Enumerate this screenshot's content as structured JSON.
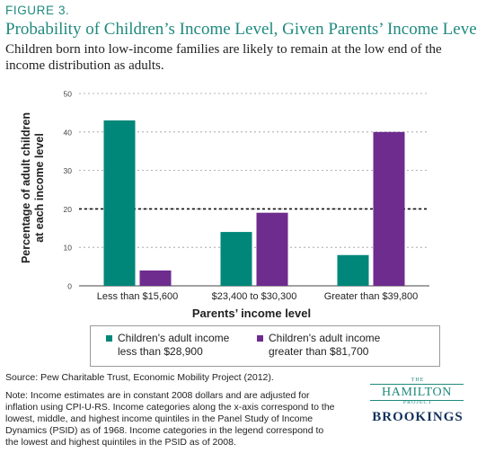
{
  "figure_label": "FIGURE 3.",
  "chart_data": {
    "type": "bar",
    "title": "Probability of Children’s Income Level, Given Parents’ Income Level",
    "subtitle": "Children born into low-income families are likely to remain at the low end of the income distribution as adults.",
    "xlabel": "Parents’ income level",
    "ylabel_lines": [
      "Percentage of adult children",
      "at each income level"
    ],
    "categories": [
      "Less than $15,600",
      "$23,400 to $30,300",
      "Greater than $39,800"
    ],
    "series": [
      {
        "name": "Children's adult income less than $28,900",
        "legend_lines": [
          "Children's adult income",
          "less than $28,900"
        ],
        "color": "#00877a",
        "values": [
          43,
          14,
          8
        ]
      },
      {
        "name": "Children's adult income greater than $81,700",
        "legend_lines": [
          "Children's adult income",
          "greater than $81,700"
        ],
        "color": "#6e2c8e",
        "values": [
          4,
          19,
          40
        ]
      }
    ],
    "ylim": [
      0,
      50
    ],
    "yticks": [
      0,
      10,
      20,
      30,
      40,
      50
    ],
    "grid": true,
    "reference_line": 20,
    "legend_position": "bottom"
  },
  "source": "Source: Pew Charitable Trust, Economic Mobility Project (2012).",
  "note": "Note: Income estimates are in constant 2008 dollars and are adjusted for inflation using CPI-U-RS. Income categories along the x-axis correspond to the lowest, middle, and highest income quintiles in the Panel Study of Income Dynamics (PSID) as of 1968. Income categories in the legend correspond to the lowest and highest quintiles in the PSID as of 2008.",
  "logo": {
    "the": "THE",
    "hamilton": "HAMILTON",
    "project": "PROJECT",
    "brookings": "BROOKINGS"
  }
}
